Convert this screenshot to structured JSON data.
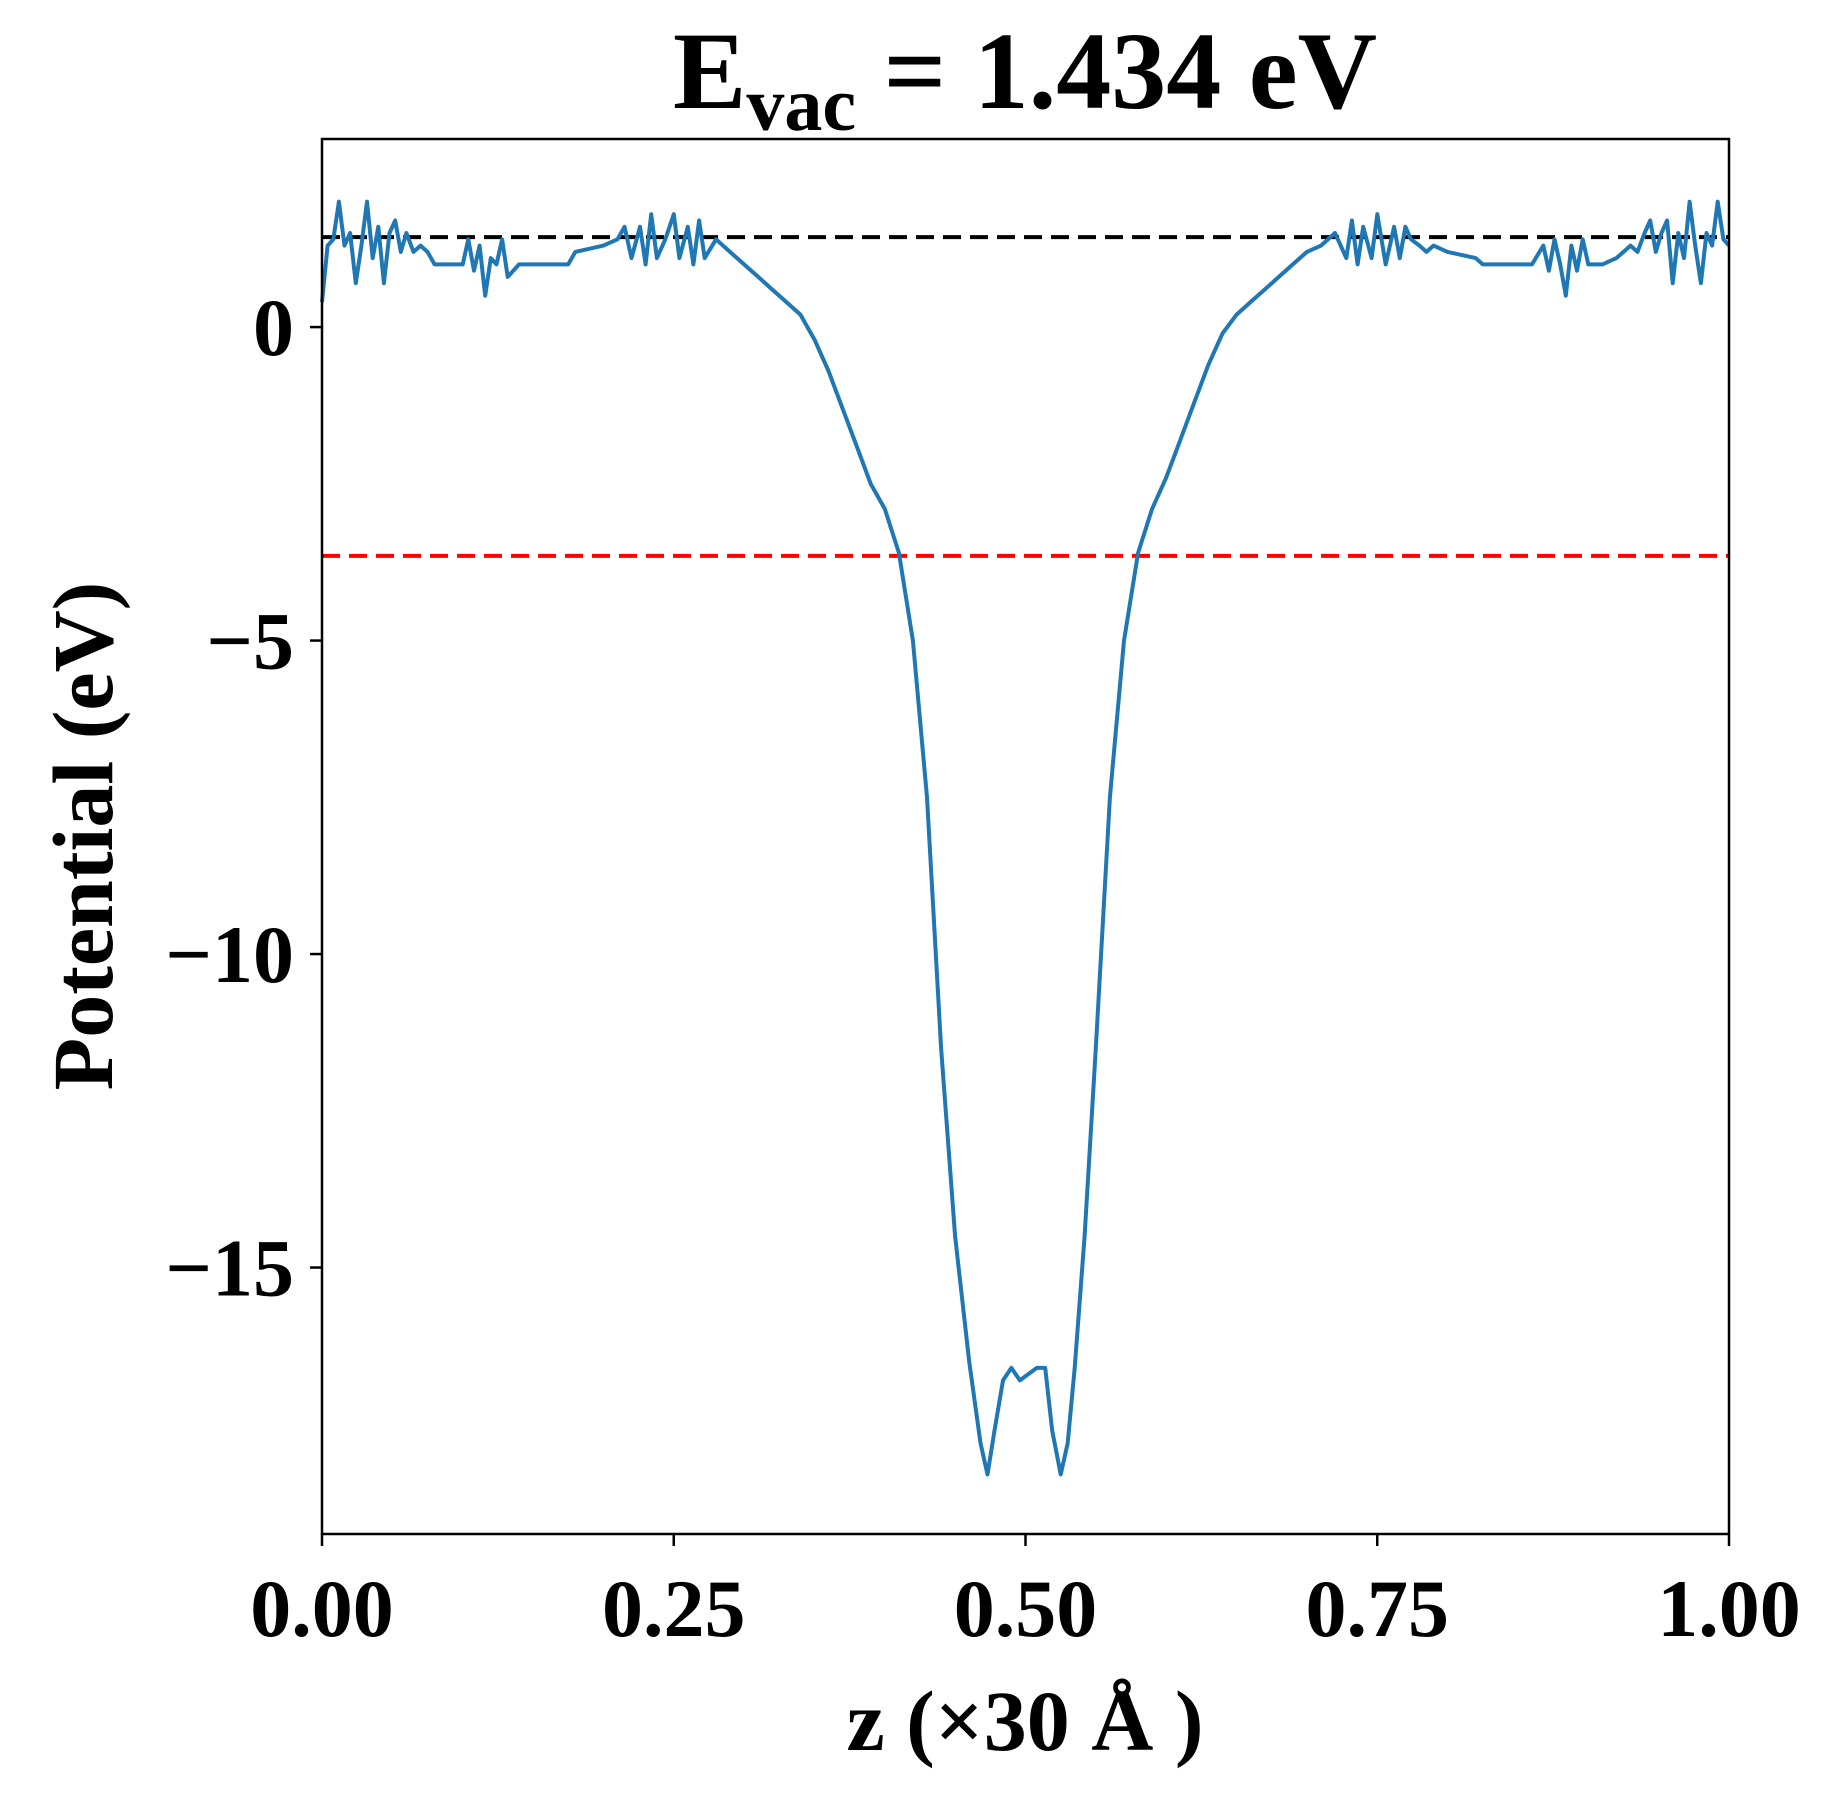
{
  "chart_data": {
    "type": "line",
    "title_main": "E",
    "title_sub": "vac",
    "title_rest": " = 1.434 eV",
    "xlabel": "z (×30 Å )",
    "ylabel": "Potential (eV)",
    "xlim": [
      0,
      1
    ],
    "ylim": [
      -19.25,
      3.0
    ],
    "xticks": [
      0,
      0.25,
      0.5,
      0.75,
      1.0
    ],
    "xtick_labels": [
      "0.00",
      "0.25",
      "0.50",
      "0.75",
      "1.00"
    ],
    "yticks": [
      0,
      -5,
      -10,
      -15
    ],
    "ytick_labels": [
      "0",
      "−5",
      "−10",
      "−15"
    ],
    "grid": false,
    "hlines": [
      {
        "name": "vacuum-level",
        "y": 1.434,
        "color": "#000000",
        "style": "dashed"
      },
      {
        "name": "fermi-level",
        "y": -3.65,
        "color": "#ff0000",
        "style": "dashed"
      }
    ],
    "series": [
      {
        "name": "planar-average-potential",
        "color": "#1f77b4",
        "x": [
          0.0,
          0.004,
          0.008,
          0.012,
          0.016,
          0.02,
          0.024,
          0.028,
          0.032,
          0.036,
          0.04,
          0.044,
          0.048,
          0.052,
          0.056,
          0.06,
          0.065,
          0.07,
          0.075,
          0.08,
          0.09,
          0.1,
          0.104,
          0.108,
          0.112,
          0.116,
          0.12,
          0.124,
          0.128,
          0.132,
          0.14,
          0.16,
          0.175,
          0.18,
          0.2,
          0.21,
          0.215,
          0.22,
          0.226,
          0.23,
          0.234,
          0.238,
          0.244,
          0.25,
          0.254,
          0.26,
          0.264,
          0.268,
          0.272,
          0.28,
          0.29,
          0.3,
          0.31,
          0.32,
          0.33,
          0.34,
          0.35,
          0.36,
          0.37,
          0.38,
          0.39,
          0.4,
          0.41,
          0.42,
          0.43,
          0.44,
          0.45,
          0.46,
          0.468,
          0.473,
          0.478,
          0.484,
          0.49,
          0.496,
          0.502,
          0.508,
          0.514,
          0.519,
          0.525,
          0.53,
          0.535,
          0.542,
          0.55,
          0.56,
          0.57,
          0.58,
          0.59,
          0.6,
          0.61,
          0.62,
          0.63,
          0.64,
          0.65,
          0.66,
          0.67,
          0.68,
          0.69,
          0.7,
          0.71,
          0.72,
          0.728,
          0.732,
          0.736,
          0.74,
          0.746,
          0.75,
          0.756,
          0.762,
          0.766,
          0.77,
          0.774,
          0.78,
          0.785,
          0.79,
          0.8,
          0.82,
          0.825,
          0.84,
          0.86,
          0.868,
          0.872,
          0.876,
          0.88,
          0.884,
          0.888,
          0.892,
          0.896,
          0.9,
          0.91,
          0.92,
          0.925,
          0.93,
          0.935,
          0.94,
          0.944,
          0.948,
          0.952,
          0.956,
          0.96,
          0.964,
          0.968,
          0.972,
          0.976,
          0.98,
          0.984,
          0.988,
          0.992,
          0.996,
          1.0
        ],
        "y": [
          0.4,
          1.3,
          1.4,
          2.0,
          1.3,
          1.5,
          0.7,
          1.3,
          2.0,
          1.1,
          1.6,
          0.7,
          1.5,
          1.7,
          1.2,
          1.5,
          1.2,
          1.3,
          1.2,
          1.0,
          1.0,
          1.0,
          1.4,
          0.9,
          1.3,
          0.5,
          1.1,
          1.0,
          1.4,
          0.8,
          1.0,
          1.0,
          1.0,
          1.2,
          1.3,
          1.4,
          1.6,
          1.1,
          1.6,
          1.0,
          1.8,
          1.1,
          1.4,
          1.8,
          1.1,
          1.6,
          1.0,
          1.7,
          1.1,
          1.4,
          1.2,
          1.0,
          0.8,
          0.6,
          0.4,
          0.2,
          -0.2,
          -0.7,
          -1.3,
          -1.9,
          -2.5,
          -2.9,
          -3.6,
          -5.0,
          -7.5,
          -11.5,
          -14.5,
          -16.5,
          -17.8,
          -18.3,
          -17.6,
          -16.8,
          -16.6,
          -16.8,
          -16.7,
          -16.6,
          -16.6,
          -17.6,
          -18.3,
          -17.8,
          -16.6,
          -14.5,
          -11.5,
          -7.5,
          -5.0,
          -3.6,
          -2.9,
          -2.4,
          -1.8,
          -1.2,
          -0.6,
          -0.1,
          0.2,
          0.4,
          0.6,
          0.8,
          1.0,
          1.2,
          1.3,
          1.5,
          1.1,
          1.7,
          1.0,
          1.6,
          1.1,
          1.8,
          1.0,
          1.6,
          1.1,
          1.6,
          1.4,
          1.3,
          1.2,
          1.3,
          1.2,
          1.1,
          1.0,
          1.0,
          1.0,
          1.3,
          0.9,
          1.4,
          1.0,
          0.5,
          1.3,
          0.9,
          1.4,
          1.0,
          1.0,
          1.1,
          1.2,
          1.3,
          1.2,
          1.5,
          1.7,
          1.2,
          1.5,
          1.7,
          0.7,
          1.5,
          1.1,
          2.0,
          1.3,
          0.7,
          1.5,
          1.3,
          2.0,
          1.4,
          1.3
        ]
      }
    ]
  }
}
